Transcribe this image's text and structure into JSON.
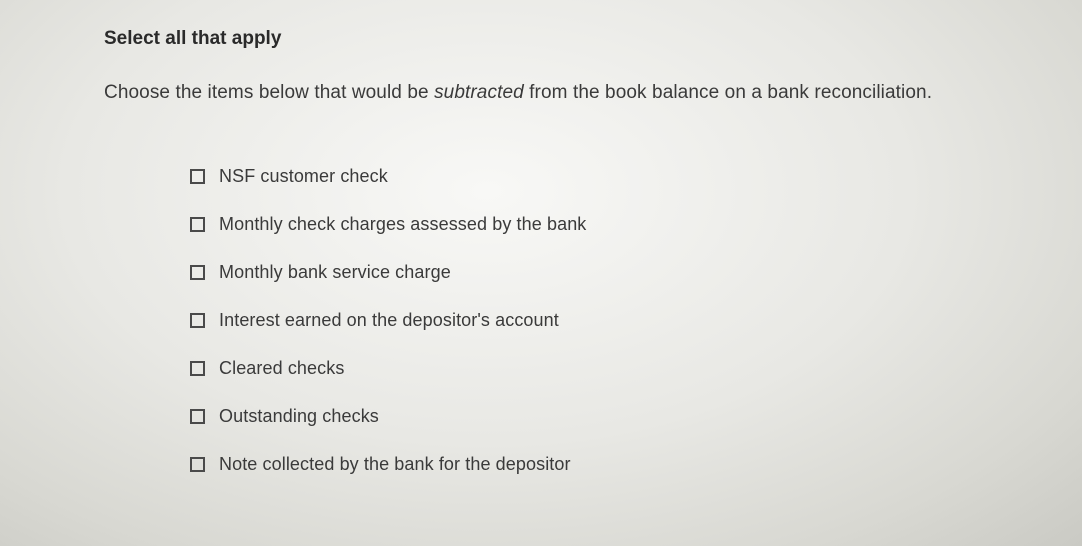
{
  "header": "Select all that apply",
  "prompt_before": "Choose the items below that would be ",
  "prompt_italic": "subtracted",
  "prompt_after": " from the book balance on a bank reconciliation.",
  "options": [
    {
      "label": "NSF customer check",
      "checked": false
    },
    {
      "label": "Monthly check charges assessed by the bank",
      "checked": false
    },
    {
      "label": "Monthly bank service charge",
      "checked": false
    },
    {
      "label": "Interest earned on the depositor's account",
      "checked": false
    },
    {
      "label": "Cleared checks",
      "checked": false
    },
    {
      "label": "Outstanding checks",
      "checked": false
    },
    {
      "label": "Note collected by the bank for the depositor",
      "checked": false
    }
  ],
  "style": {
    "header_fontsize": 19,
    "header_fontweight": 700,
    "header_color": "#2a2a2a",
    "prompt_fontsize": 19,
    "prompt_color": "#3a3a3a",
    "option_fontsize": 18,
    "option_color": "#3a3a3a",
    "checkbox_size": 15,
    "checkbox_border_color": "#4a4a4a",
    "checkbox_border_width": 2,
    "background_gradient_inner": "#f8f8f6",
    "background_gradient_mid": "#e8e8e4",
    "background_gradient_outer": "#cacac4",
    "option_vertical_gap": 27,
    "options_left_indent": 86
  }
}
